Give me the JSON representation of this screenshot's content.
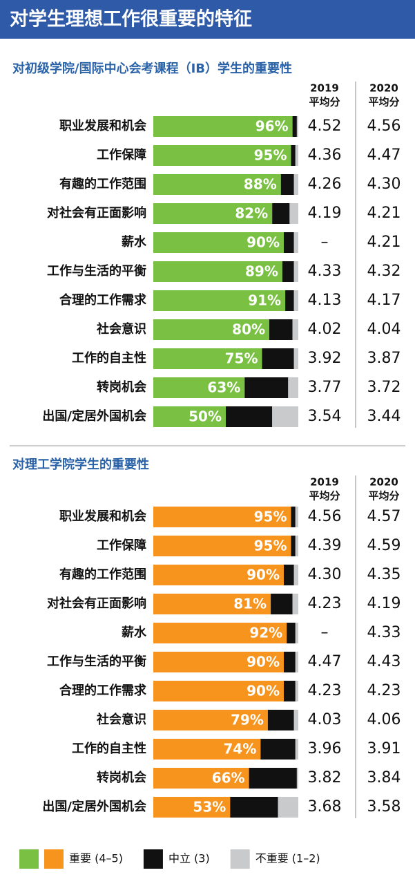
{
  "title": "对学生理想工作很重要的特征",
  "legend": [
    {
      "label": "重要 (4–5)",
      "colors": [
        "#7ac143",
        "#f7941d"
      ]
    },
    {
      "label": "中立 (3)",
      "colors": [
        "#111111"
      ]
    },
    {
      "label": "不重要 (1–2)",
      "colors": [
        "#c9cacc"
      ]
    }
  ],
  "chart_data": [
    {
      "type": "bar",
      "orientation": "horizontal",
      "stacked": true,
      "title": "对初级学院/国际中心会考课程（IB）学生的重要性",
      "categories": [
        "职业发展和机会",
        "工作保障",
        "有趣的工作范围",
        "对社会有正面影响",
        "薪水",
        "工作与生活的平衡",
        "合理的工作需求",
        "社会意识",
        "工作的自主性",
        "转岗机会",
        "出国/定居外国机会"
      ],
      "xlim": [
        0,
        100
      ],
      "series": [
        {
          "color": "#7ac143",
          "values": [
            96,
            95,
            88,
            82,
            90,
            89,
            91,
            80,
            75,
            63,
            50
          ],
          "value_labels": [
            "96%",
            "95%",
            "88%",
            "82%",
            "90%",
            "89%",
            "91%",
            "80%",
            "75%",
            "63%",
            "50%"
          ]
        },
        {
          "color": "#111111",
          "values": [
            3,
            3,
            9,
            12,
            7,
            8,
            6,
            16,
            22,
            30,
            32
          ]
        },
        {
          "color": "#c9cacc",
          "values": [
            1,
            2,
            3,
            6,
            3,
            3,
            3,
            4,
            3,
            7,
            18
          ]
        }
      ],
      "columns": [
        {
          "header": [
            "2019",
            "平均分"
          ],
          "cells": [
            "4.52",
            "4.36",
            "4.26",
            "4.19",
            "–",
            "4.33",
            "4.13",
            "4.02",
            "3.92",
            "3.77",
            "3.54"
          ]
        },
        {
          "header": [
            "2020",
            "平均分"
          ],
          "cells": [
            "4.56",
            "4.47",
            "4.30",
            "4.21",
            "4.21",
            "4.32",
            "4.17",
            "4.04",
            "3.87",
            "3.72",
            "3.44"
          ]
        }
      ]
    },
    {
      "type": "bar",
      "orientation": "horizontal",
      "stacked": true,
      "title": "对理工学院学生的重要性",
      "categories": [
        "职业发展和机会",
        "工作保障",
        "有趣的工作范围",
        "对社会有正面影响",
        "薪水",
        "工作与生活的平衡",
        "合理的工作需求",
        "社会意识",
        "工作的自主性",
        "转岗机会",
        "出国/定居外国机会"
      ],
      "xlim": [
        0,
        100
      ],
      "series": [
        {
          "color": "#f7941d",
          "values": [
            95,
            95,
            90,
            81,
            92,
            90,
            90,
            79,
            74,
            66,
            53
          ],
          "value_labels": [
            "95%",
            "95%",
            "90%",
            "81%",
            "92%",
            "90%",
            "90%",
            "79%",
            "74%",
            "66%",
            "53%"
          ]
        },
        {
          "color": "#111111",
          "values": [
            3,
            3,
            7,
            15,
            6,
            8,
            8,
            18,
            24,
            33,
            33
          ]
        },
        {
          "color": "#c9cacc",
          "values": [
            2,
            2,
            3,
            4,
            2,
            2,
            2,
            3,
            2,
            1,
            14
          ]
        }
      ],
      "columns": [
        {
          "header": [
            "2019",
            "平均分"
          ],
          "cells": [
            "4.56",
            "4.39",
            "4.30",
            "4.23",
            "–",
            "4.47",
            "4.23",
            "4.03",
            "3.96",
            "3.82",
            "3.68"
          ]
        },
        {
          "header": [
            "2020",
            "平均分"
          ],
          "cells": [
            "4.57",
            "4.59",
            "4.35",
            "4.19",
            "4.33",
            "4.43",
            "4.23",
            "4.06",
            "3.91",
            "3.84",
            "3.58"
          ]
        }
      ]
    }
  ]
}
